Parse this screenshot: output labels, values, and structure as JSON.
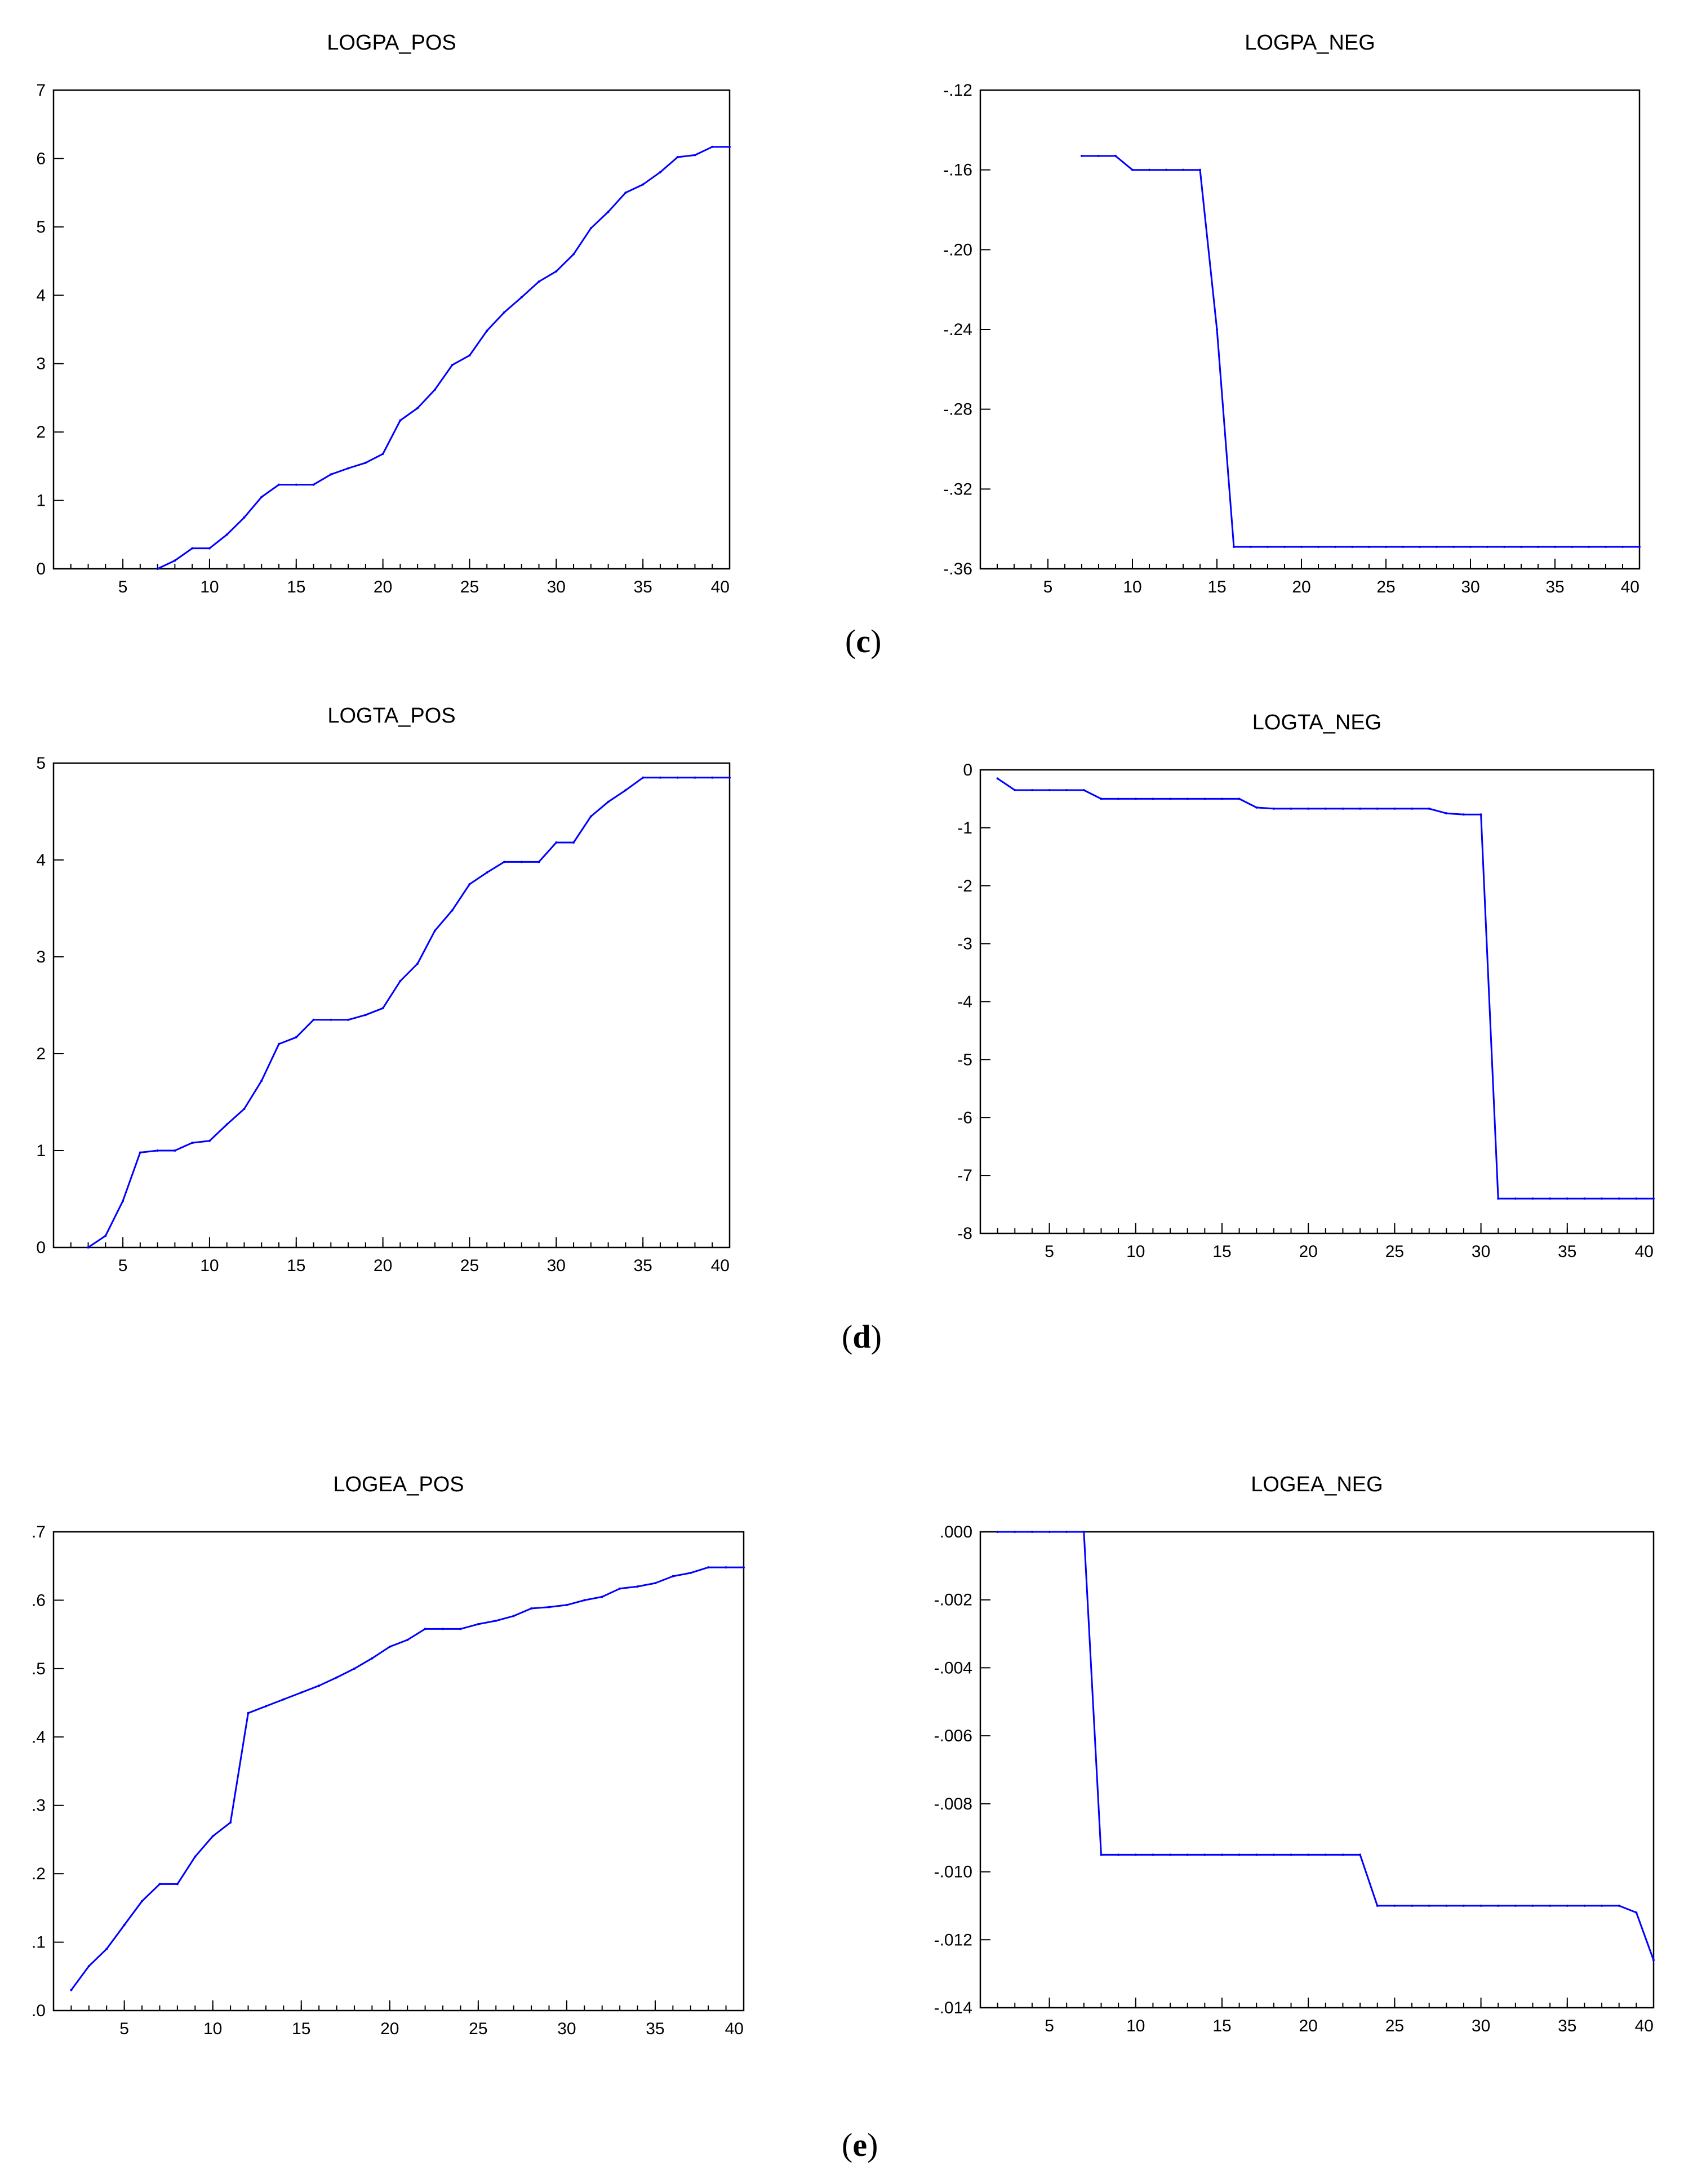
{
  "panel_labels": [
    {
      "open": "(",
      "letter": "c",
      "close": ")"
    },
    {
      "open": "(",
      "letter": "d",
      "close": ")"
    },
    {
      "open": "(",
      "letter": "e",
      "close": ")"
    }
  ],
  "colors": {
    "line": "#0000ff",
    "axis": "#000000"
  },
  "chart_data": [
    {
      "type": "line",
      "title": "LOGPA_POS",
      "xlim": [
        1,
        40
      ],
      "ylim": [
        0,
        7
      ],
      "xticks": [
        5,
        10,
        15,
        20,
        25,
        30,
        35,
        40
      ],
      "xtick_labels": [
        "5",
        "10",
        "15",
        "20",
        "25",
        "30",
        "35",
        "40"
      ],
      "yticks": [
        0,
        1,
        2,
        3,
        4,
        5,
        6,
        7
      ],
      "ytick_labels": [
        "0",
        "1",
        "2",
        "3",
        "4",
        "5",
        "6",
        "7"
      ],
      "series": [
        {
          "name": "LOGPA_POS",
          "x": [
            7,
            8,
            9,
            10,
            11,
            12,
            13,
            14,
            15,
            16,
            17,
            18,
            19,
            20,
            21,
            22,
            23,
            24,
            25,
            26,
            27,
            28,
            29,
            30,
            31,
            32,
            33,
            34,
            35,
            36,
            37,
            38,
            39,
            40
          ],
          "values": [
            0.0,
            0.12,
            0.3,
            0.3,
            0.5,
            0.75,
            1.05,
            1.23,
            1.23,
            1.23,
            1.38,
            1.47,
            1.55,
            1.68,
            2.17,
            2.35,
            2.62,
            2.98,
            3.12,
            3.48,
            3.75,
            3.97,
            4.2,
            4.35,
            4.6,
            4.98,
            5.22,
            5.5,
            5.62,
            5.8,
            6.02,
            6.05,
            6.17,
            6.17
          ]
        }
      ]
    },
    {
      "type": "line",
      "title": "LOGPA_NEG",
      "xlim": [
        1,
        40
      ],
      "ylim": [
        -0.36,
        -0.12
      ],
      "xticks": [
        5,
        10,
        15,
        20,
        25,
        30,
        35,
        40
      ],
      "xtick_labels": [
        "5",
        "10",
        "15",
        "20",
        "25",
        "30",
        "35",
        "40"
      ],
      "yticks": [
        -0.36,
        -0.32,
        -0.28,
        -0.24,
        -0.2,
        -0.16,
        -0.12
      ],
      "ytick_labels": [
        "-.36",
        "-.32",
        "-.28",
        "-.24",
        "-.20",
        "-.16",
        "-.12"
      ],
      "series": [
        {
          "name": "LOGPA_NEG",
          "x": [
            7,
            8,
            9,
            10,
            11,
            12,
            13,
            14,
            15,
            16,
            17,
            18,
            19,
            20,
            21,
            22,
            23,
            24,
            25,
            26,
            27,
            28,
            29,
            30,
            31,
            32,
            33,
            34,
            35,
            36,
            37,
            38,
            39,
            40
          ],
          "values": [
            -0.153,
            -0.153,
            -0.153,
            -0.16,
            -0.16,
            -0.16,
            -0.16,
            -0.16,
            -0.24,
            -0.349,
            -0.349,
            -0.349,
            -0.349,
            -0.349,
            -0.349,
            -0.349,
            -0.349,
            -0.349,
            -0.349,
            -0.349,
            -0.349,
            -0.349,
            -0.349,
            -0.349,
            -0.349,
            -0.349,
            -0.349,
            -0.349,
            -0.349,
            -0.349,
            -0.349,
            -0.349,
            -0.349,
            -0.349
          ]
        }
      ]
    },
    {
      "type": "line",
      "title": "LOGTA_POS",
      "xlim": [
        1,
        40
      ],
      "ylim": [
        0,
        5
      ],
      "xticks": [
        5,
        10,
        15,
        20,
        25,
        30,
        35,
        40
      ],
      "xtick_labels": [
        "5",
        "10",
        "15",
        "20",
        "25",
        "30",
        "35",
        "40"
      ],
      "yticks": [
        0,
        1,
        2,
        3,
        4,
        5
      ],
      "ytick_labels": [
        "0",
        "1",
        "2",
        "3",
        "4",
        "5"
      ],
      "series": [
        {
          "name": "LOGTA_POS",
          "x": [
            3,
            4,
            5,
            6,
            7,
            8,
            9,
            10,
            11,
            12,
            13,
            14,
            15,
            16,
            17,
            18,
            19,
            20,
            21,
            22,
            23,
            24,
            25,
            26,
            27,
            28,
            29,
            30,
            31,
            32,
            33,
            34,
            35,
            36,
            37,
            38,
            39,
            40
          ],
          "values": [
            0.0,
            0.12,
            0.48,
            0.98,
            1.0,
            1.0,
            1.08,
            1.1,
            1.27,
            1.43,
            1.72,
            2.1,
            2.17,
            2.35,
            2.35,
            2.35,
            2.4,
            2.47,
            2.75,
            2.93,
            3.27,
            3.48,
            3.75,
            3.87,
            3.98,
            3.98,
            3.98,
            4.18,
            4.18,
            4.45,
            4.6,
            4.72,
            4.85,
            4.85,
            4.85,
            4.85,
            4.85,
            4.85
          ]
        }
      ]
    },
    {
      "type": "line",
      "title": "LOGTA_NEG",
      "xlim": [
        1,
        40
      ],
      "ylim": [
        -8,
        0
      ],
      "xticks": [
        5,
        10,
        15,
        20,
        25,
        30,
        35,
        40
      ],
      "xtick_labels": [
        "5",
        "10",
        "15",
        "20",
        "25",
        "30",
        "35",
        "40"
      ],
      "yticks": [
        -8,
        -7,
        -6,
        -5,
        -4,
        -3,
        -2,
        -1,
        0
      ],
      "ytick_labels": [
        "-8",
        "-7",
        "-6",
        "-5",
        "-4",
        "-3",
        "-2",
        "-1",
        "0"
      ],
      "series": [
        {
          "name": "LOGTA_NEG",
          "x": [
            2,
            3,
            4,
            5,
            6,
            7,
            8,
            9,
            10,
            11,
            12,
            13,
            14,
            15,
            16,
            17,
            18,
            19,
            20,
            21,
            22,
            23,
            24,
            25,
            26,
            27,
            28,
            29,
            30,
            31,
            32,
            33,
            34,
            35,
            36,
            37,
            38,
            39,
            40
          ],
          "values": [
            -0.15,
            -0.35,
            -0.35,
            -0.35,
            -0.35,
            -0.35,
            -0.5,
            -0.5,
            -0.5,
            -0.5,
            -0.5,
            -0.5,
            -0.5,
            -0.5,
            -0.5,
            -0.65,
            -0.67,
            -0.67,
            -0.67,
            -0.67,
            -0.67,
            -0.67,
            -0.67,
            -0.67,
            -0.67,
            -0.67,
            -0.75,
            -0.77,
            -0.77,
            -7.4,
            -7.4,
            -7.4,
            -7.4,
            -7.4,
            -7.4,
            -7.4,
            -7.4,
            -7.4,
            -7.4
          ]
        }
      ]
    },
    {
      "type": "line",
      "title": "LOGEA_POS",
      "xlim": [
        1,
        40
      ],
      "ylim": [
        0,
        0.7
      ],
      "xticks": [
        5,
        10,
        15,
        20,
        25,
        30,
        35,
        40
      ],
      "xtick_labels": [
        "5",
        "10",
        "15",
        "20",
        "25",
        "30",
        "35",
        "40"
      ],
      "yticks": [
        0,
        0.1,
        0.2,
        0.3,
        0.4,
        0.5,
        0.6,
        0.7
      ],
      "ytick_labels": [
        ".0",
        ".1",
        ".2",
        ".3",
        ".4",
        ".5",
        ".6",
        ".7"
      ],
      "series": [
        {
          "name": "LOGEA_POS",
          "x": [
            2,
            3,
            4,
            5,
            6,
            7,
            8,
            9,
            10,
            11,
            12,
            13,
            14,
            15,
            16,
            17,
            18,
            19,
            20,
            21,
            22,
            23,
            24,
            25,
            26,
            27,
            28,
            29,
            30,
            31,
            32,
            33,
            34,
            35,
            36,
            37,
            38,
            39,
            40
          ],
          "values": [
            0.03,
            0.065,
            0.09,
            0.125,
            0.16,
            0.185,
            0.185,
            0.225,
            0.255,
            0.275,
            0.435,
            0.445,
            0.455,
            0.465,
            0.475,
            0.487,
            0.5,
            0.515,
            0.532,
            0.542,
            0.558,
            0.558,
            0.558,
            0.565,
            0.57,
            0.577,
            0.588,
            0.59,
            0.593,
            0.6,
            0.605,
            0.617,
            0.62,
            0.625,
            0.635,
            0.64,
            0.648,
            0.648,
            0.648
          ]
        }
      ]
    },
    {
      "type": "line",
      "title": "LOGEA_NEG",
      "xlim": [
        1,
        40
      ],
      "ylim": [
        -0.014,
        0
      ],
      "xticks": [
        5,
        10,
        15,
        20,
        25,
        30,
        35,
        40
      ],
      "xtick_labels": [
        "5",
        "10",
        "15",
        "20",
        "25",
        "30",
        "35",
        "40"
      ],
      "yticks": [
        -0.014,
        -0.012,
        -0.01,
        -0.008,
        -0.006,
        -0.004,
        -0.002,
        0
      ],
      "ytick_labels": [
        "-.014",
        "-.012",
        "-.010",
        "-.008",
        "-.006",
        "-.004",
        "-.002",
        ".000"
      ],
      "series": [
        {
          "name": "LOGEA_NEG",
          "x": [
            2,
            3,
            4,
            5,
            6,
            7,
            8,
            9,
            10,
            11,
            12,
            13,
            14,
            15,
            16,
            17,
            18,
            19,
            20,
            21,
            22,
            23,
            24,
            25,
            26,
            27,
            28,
            29,
            30,
            31,
            32,
            33,
            34,
            35,
            36,
            37,
            38,
            39,
            40
          ],
          "values": [
            0,
            0,
            0,
            0,
            0,
            0,
            -0.0095,
            -0.0095,
            -0.0095,
            -0.0095,
            -0.0095,
            -0.0095,
            -0.0095,
            -0.0095,
            -0.0095,
            -0.0095,
            -0.0095,
            -0.0095,
            -0.0095,
            -0.0095,
            -0.0095,
            -0.0095,
            -0.011,
            -0.011,
            -0.011,
            -0.011,
            -0.011,
            -0.011,
            -0.011,
            -0.011,
            -0.011,
            -0.011,
            -0.011,
            -0.011,
            -0.011,
            -0.011,
            -0.011,
            -0.0112,
            -0.0126
          ]
        }
      ]
    }
  ]
}
